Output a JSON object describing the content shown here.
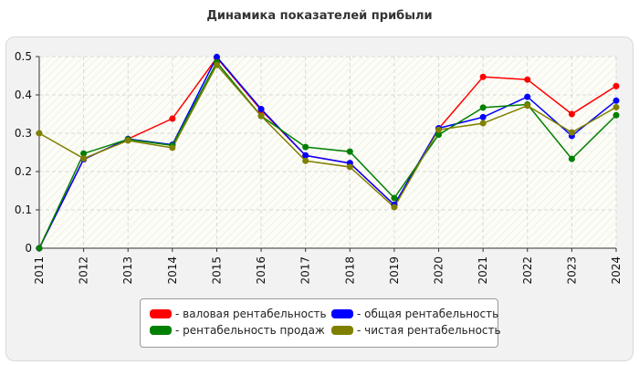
{
  "chart_data": {
    "type": "line",
    "title": "Динамика показателей прибыли",
    "x": [
      "2011",
      "2012",
      "2013",
      "2014",
      "2015",
      "2016",
      "2017",
      "2018",
      "2019",
      "2020",
      "2021",
      "2022",
      "2023",
      "2024"
    ],
    "ylim": [
      0,
      0.5
    ],
    "yticks": [
      "0",
      "0.1",
      "0.2",
      "0.3",
      "0.4",
      "0.5"
    ],
    "grid": true,
    "legend_position": "bottom",
    "series": [
      {
        "name": "- валовая рентабельность",
        "color": "#ff0000",
        "values": [
          0,
          0.232,
          0.285,
          0.338,
          0.497,
          0.36,
          0.242,
          0.222,
          0.113,
          0.312,
          0.447,
          0.44,
          0.35,
          0.423
        ]
      },
      {
        "name": "- общая рентабельность",
        "color": "#0000ff",
        "values": [
          0,
          0.232,
          0.285,
          0.27,
          0.499,
          0.363,
          0.242,
          0.222,
          0.113,
          0.313,
          0.342,
          0.395,
          0.293,
          0.385
        ]
      },
      {
        "name": "- рентабельность продаж",
        "color": "#008000",
        "values": [
          0,
          0.247,
          0.284,
          0.268,
          0.485,
          0.345,
          0.264,
          0.252,
          0.131,
          0.296,
          0.367,
          0.375,
          0.233,
          0.347
        ]
      },
      {
        "name": "- чистая рентабельность",
        "color": "#808000",
        "values": [
          0.3,
          0.234,
          0.281,
          0.262,
          0.478,
          0.345,
          0.228,
          0.212,
          0.107,
          0.309,
          0.326,
          0.372,
          0.302,
          0.368
        ]
      }
    ]
  }
}
